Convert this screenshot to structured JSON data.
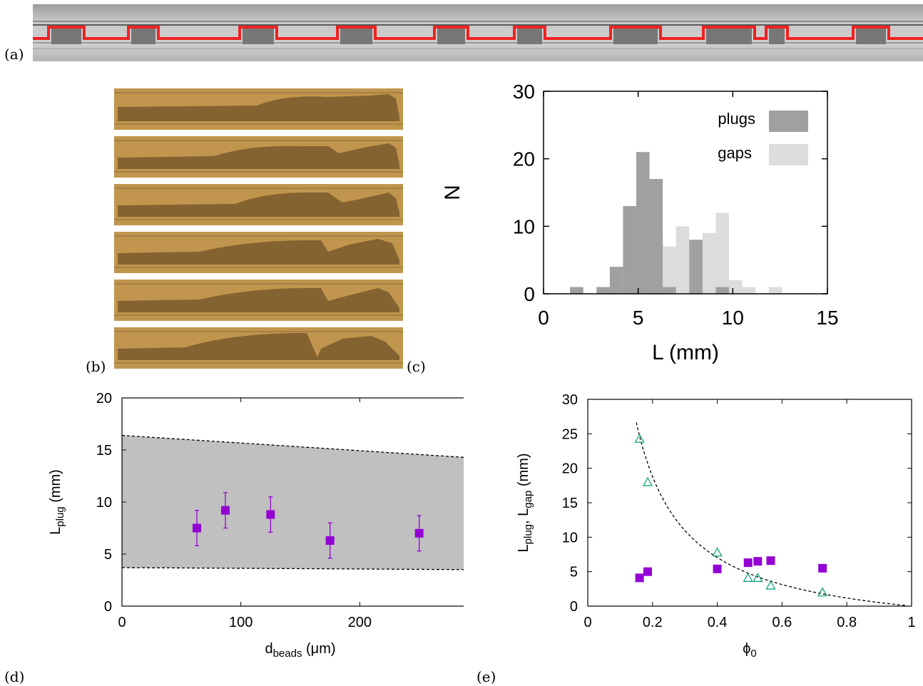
{
  "panels": {
    "a": "(a)",
    "b": "(b)",
    "c": "(c)",
    "d": "(d)",
    "e": "(e)"
  },
  "colors": {
    "plug_overlay": "#ee2222",
    "plugs_bar": "#a0a0a0",
    "gaps_bar": "#dcdcdc",
    "purple": "#9400d3",
    "green": "#009e73",
    "band": "#c0c0c0",
    "photo_bg": "#c1954d"
  },
  "chart_data": [
    {
      "panel": "c",
      "type": "bar",
      "xlabel": "L (mm)",
      "ylabel": "N",
      "xlim": [
        0,
        15
      ],
      "ylim": [
        0,
        30
      ],
      "xticks": [
        "0",
        "5",
        "10",
        "15"
      ],
      "yticks": [
        "0",
        "10",
        "20",
        "30"
      ],
      "legend": "top-right",
      "bin_width": 0.7,
      "series": [
        {
          "name": "plugs",
          "bins": [
            {
              "x": 1.4,
              "n": 1
            },
            {
              "x": 2.8,
              "n": 1
            },
            {
              "x": 3.5,
              "n": 4
            },
            {
              "x": 4.2,
              "n": 13
            },
            {
              "x": 4.9,
              "n": 21
            },
            {
              "x": 5.6,
              "n": 17
            },
            {
              "x": 6.3,
              "n": 1
            },
            {
              "x": 7.7,
              "n": 8
            },
            {
              "x": 9.1,
              "n": 1
            }
          ]
        },
        {
          "name": "gaps",
          "bins": [
            {
              "x": 3.5,
              "n": 1
            },
            {
              "x": 4.2,
              "n": 3
            },
            {
              "x": 4.9,
              "n": 3
            },
            {
              "x": 5.6,
              "n": 8
            },
            {
              "x": 6.3,
              "n": 7
            },
            {
              "x": 7.0,
              "n": 10
            },
            {
              "x": 7.7,
              "n": 8
            },
            {
              "x": 8.4,
              "n": 9
            },
            {
              "x": 9.1,
              "n": 12
            },
            {
              "x": 9.8,
              "n": 2
            },
            {
              "x": 10.5,
              "n": 1
            },
            {
              "x": 11.9,
              "n": 1
            }
          ]
        }
      ]
    },
    {
      "panel": "d",
      "type": "scatter",
      "xlabel_main": "d",
      "xlabel_sub": "beads",
      "xlabel_unit": " (μm)",
      "ylabel_main": "L",
      "ylabel_sub": "plug",
      "ylabel_unit": " (mm)",
      "xlim": [
        0,
        300
      ],
      "ylim": [
        0,
        20
      ],
      "xticks": [
        "0",
        "100",
        "200",
        "300"
      ],
      "yticks": [
        "0",
        "5",
        "10",
        "15",
        "20"
      ],
      "band": {
        "upper": [
          [
            0,
            16.4
          ],
          [
            300,
            14.2
          ]
        ],
        "lower": [
          [
            0,
            3.7
          ],
          [
            300,
            3.5
          ]
        ]
      },
      "points": [
        {
          "x": 63,
          "y": 7.5,
          "err": 1.7
        },
        {
          "x": 87,
          "y": 9.2,
          "err": 1.7
        },
        {
          "x": 125,
          "y": 8.8,
          "err": 1.7
        },
        {
          "x": 175,
          "y": 6.3,
          "err": 1.7
        },
        {
          "x": 250,
          "y": 7.0,
          "err": 1.7
        }
      ]
    },
    {
      "panel": "e",
      "type": "scatter",
      "xlabel_main": "ϕ",
      "xlabel_sub": "0",
      "ylabel_parts": [
        "L",
        "plug",
        ", L",
        "gap",
        " (mm)"
      ],
      "xlim": [
        0,
        1
      ],
      "ylim": [
        0,
        30
      ],
      "xticks": [
        "0",
        "0.2",
        "0.4",
        "0.6",
        "0.8",
        "1"
      ],
      "yticks": [
        "0",
        "5",
        "10",
        "15",
        "20",
        "25",
        "30"
      ],
      "curve": {
        "kind": "fit",
        "x_start": 0.15,
        "x_end": 0.98
      },
      "squares": [
        {
          "x": 0.16,
          "y": 4.1
        },
        {
          "x": 0.185,
          "y": 5.0
        },
        {
          "x": 0.4,
          "y": 5.4
        },
        {
          "x": 0.495,
          "y": 6.3
        },
        {
          "x": 0.525,
          "y": 6.5
        },
        {
          "x": 0.565,
          "y": 6.6
        },
        {
          "x": 0.725,
          "y": 5.5
        }
      ],
      "triangles": [
        {
          "x": 0.16,
          "y": 24.3
        },
        {
          "x": 0.185,
          "y": 18.0
        },
        {
          "x": 0.4,
          "y": 7.8
        },
        {
          "x": 0.495,
          "y": 4.1
        },
        {
          "x": 0.525,
          "y": 4.1
        },
        {
          "x": 0.565,
          "y": 3.0
        },
        {
          "x": 0.725,
          "y": 2.0
        }
      ]
    }
  ]
}
